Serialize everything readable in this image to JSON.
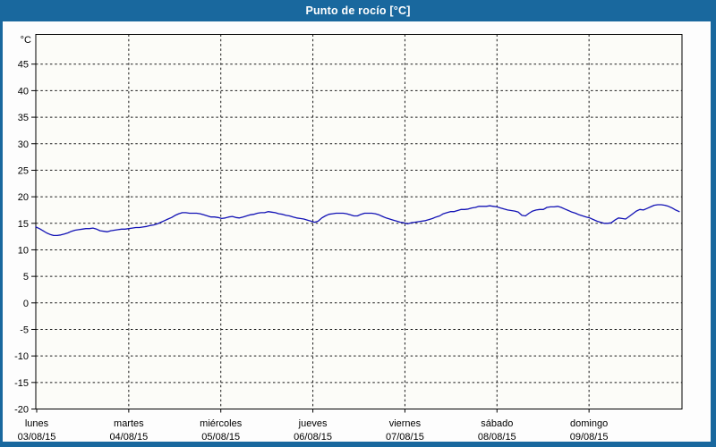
{
  "window": {
    "title": "Punto de rocío [°C]"
  },
  "colors": {
    "frame": "#19689e",
    "title_text": "#ffffff",
    "line": "#1212b5",
    "plot_bg": "#fcfcf8",
    "grid": "#1a1a1a",
    "text": "#000000"
  },
  "chart_data": {
    "type": "line",
    "title": "Punto de rocío [°C]",
    "ylabel": "°C",
    "ylim": [
      -20,
      50.6
    ],
    "y_ticks": [
      45,
      40,
      35,
      30,
      25,
      20,
      15,
      10,
      5,
      0,
      -5,
      -10,
      -15,
      -20
    ],
    "xlim_days": [
      0,
      7
    ],
    "grid": "dashed-black",
    "legend": "none",
    "x_days": [
      {
        "name": "lunes",
        "date": "03/08/15"
      },
      {
        "name": "martes",
        "date": "04/08/15"
      },
      {
        "name": "miércoles",
        "date": "05/08/15"
      },
      {
        "name": "jueves",
        "date": "06/08/15"
      },
      {
        "name": "viernes",
        "date": "07/08/15"
      },
      {
        "name": "sábado",
        "date": "08/08/15"
      },
      {
        "name": "domingo",
        "date": "09/08/15"
      }
    ],
    "series": [
      {
        "name": "Punto de rocío",
        "color": "#1212b5",
        "x_start_days": -0.01,
        "x_step_days": 0.03883,
        "values": [
          14.3,
          14.0,
          13.6,
          13.2,
          12.9,
          12.7,
          12.7,
          12.8,
          13.0,
          13.2,
          13.5,
          13.7,
          13.8,
          13.9,
          14.0,
          14.0,
          14.1,
          13.9,
          13.6,
          13.5,
          13.4,
          13.6,
          13.7,
          13.8,
          13.9,
          13.9,
          14.0,
          14.1,
          14.2,
          14.2,
          14.3,
          14.4,
          14.6,
          14.7,
          14.9,
          15.2,
          15.5,
          15.8,
          16.1,
          16.5,
          16.8,
          17.0,
          17.0,
          16.9,
          16.9,
          16.9,
          16.8,
          16.6,
          16.4,
          16.2,
          16.2,
          16.1,
          15.9,
          16.0,
          16.2,
          16.3,
          16.1,
          16.0,
          16.2,
          16.4,
          16.6,
          16.7,
          16.9,
          17.0,
          17.0,
          17.2,
          17.1,
          17.0,
          16.8,
          16.7,
          16.5,
          16.4,
          16.2,
          16.0,
          15.9,
          15.8,
          15.6,
          15.4,
          15.2,
          15.4,
          16.0,
          16.4,
          16.7,
          16.8,
          16.9,
          16.9,
          16.9,
          16.8,
          16.6,
          16.4,
          16.4,
          16.7,
          16.9,
          16.9,
          16.9,
          16.8,
          16.6,
          16.3,
          16.0,
          15.8,
          15.6,
          15.4,
          15.2,
          15.1,
          14.9,
          15.1,
          15.2,
          15.3,
          15.4,
          15.5,
          15.7,
          15.9,
          16.2,
          16.4,
          16.8,
          17.0,
          17.2,
          17.2,
          17.4,
          17.6,
          17.6,
          17.7,
          17.9,
          18.0,
          18.2,
          18.2,
          18.2,
          18.3,
          18.2,
          18.1,
          17.9,
          17.7,
          17.5,
          17.4,
          17.3,
          17.1,
          16.5,
          16.4,
          16.9,
          17.3,
          17.5,
          17.6,
          17.6,
          18.0,
          18.1,
          18.1,
          18.2,
          18.0,
          17.7,
          17.4,
          17.1,
          16.9,
          16.6,
          16.4,
          16.2,
          16.0,
          15.7,
          15.4,
          15.2,
          15.0,
          15.0,
          15.1,
          15.6,
          16.0,
          15.9,
          15.8,
          16.3,
          16.8,
          17.3,
          17.6,
          17.5,
          17.8,
          18.1,
          18.4,
          18.5,
          18.5,
          18.4,
          18.2,
          17.9,
          17.5,
          17.2
        ]
      }
    ]
  }
}
